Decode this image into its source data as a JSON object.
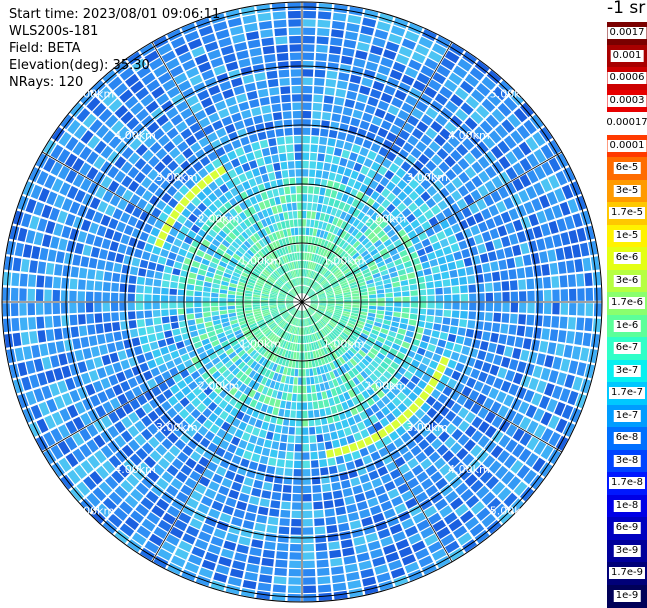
{
  "info": {
    "start_time": "Start time: 2023/08/01 09:06:11",
    "device": "WLS200s-181",
    "field": "Field: BETA",
    "elevation": "Elevation(deg): 35.30",
    "nrays": "NRays: 120"
  },
  "colorbar": {
    "unit": "-1 sr",
    "entries": [
      {
        "label": "0.0017",
        "color": "#7a0000"
      },
      {
        "label": "0.001",
        "color": "#a80000"
      },
      {
        "label": "0.0006",
        "color": "#cc0000"
      },
      {
        "label": "0.0003",
        "color": "#e80000"
      },
      {
        "label": "0.00017",
        "color": "#ffffff"
      },
      {
        "label": "0.0001",
        "color": "#ff3a00"
      },
      {
        "label": "6e-5",
        "color": "#ff6c00"
      },
      {
        "label": "3e-5",
        "color": "#ff9a00"
      },
      {
        "label": "1.7e-5",
        "color": "#ffc800"
      },
      {
        "label": "1e-5",
        "color": "#fff200"
      },
      {
        "label": "6e-6",
        "color": "#e4ff14"
      },
      {
        "label": "3e-6",
        "color": "#b6ff42"
      },
      {
        "label": "1.7e-6",
        "color": "#8aff6e"
      },
      {
        "label": "1e-6",
        "color": "#5cff9a"
      },
      {
        "label": "6e-7",
        "color": "#30ffc8"
      },
      {
        "label": "3e-7",
        "color": "#08f0f0"
      },
      {
        "label": "1.7e-7",
        "color": "#00c8ff"
      },
      {
        "label": "1e-7",
        "color": "#009cff"
      },
      {
        "label": "6e-8",
        "color": "#0070ff"
      },
      {
        "label": "3e-8",
        "color": "#0044ff"
      },
      {
        "label": "1.7e-8",
        "color": "#0018ff"
      },
      {
        "label": "1e-8",
        "color": "#0000e6"
      },
      {
        "label": "6e-9",
        "color": "#0000c0"
      },
      {
        "label": "3e-9",
        "color": "#00009a"
      },
      {
        "label": "1.7e-9",
        "color": "#000078"
      },
      {
        "label": "1e-9",
        "color": "#000058"
      }
    ]
  },
  "range_ring_labels": [
    "1.00km",
    "2.00km",
    "3.00km",
    "4.00km",
    "5.00km"
  ],
  "palette": {
    "outer_blue": "#2f8ff5",
    "mid_cyan": "#34c6f5",
    "inner_green": "#5cf0b4",
    "yellow_band": "#d8ff3a",
    "ring_line": "#000000",
    "gate_gap": "#ffffff"
  }
}
